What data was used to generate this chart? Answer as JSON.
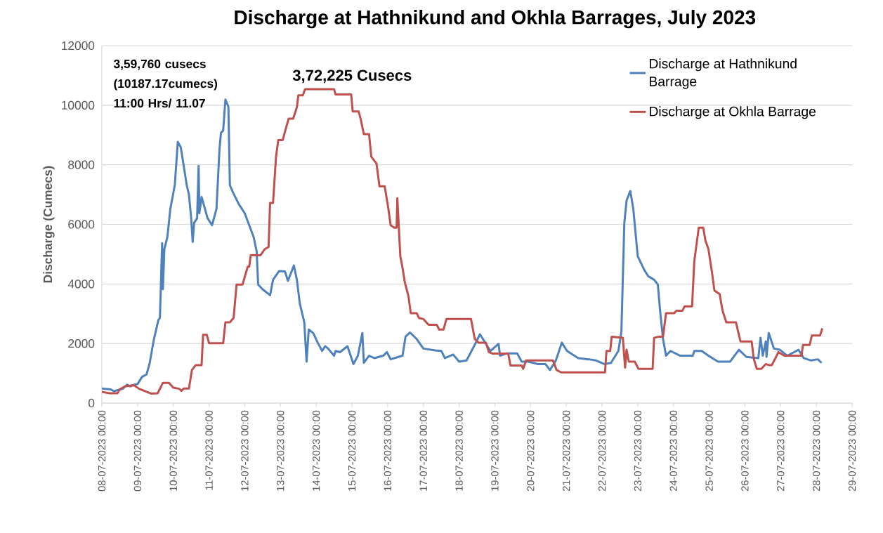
{
  "chart_data": {
    "type": "line",
    "title": "Discharge at Hathnikund and Okhla Barrages, July 2023",
    "ylabel": "Discharge (Cumecs)",
    "xlim": [
      "2023-07-08T00:00",
      "2023-07-29T00:00"
    ],
    "ylim": [
      0,
      12000
    ],
    "xticks": [
      {
        "value": "2023-07-08T00:00",
        "label": "08-07-2023 00:00"
      },
      {
        "value": "2023-07-09T00:00",
        "label": "09-07-2023 00:00"
      },
      {
        "value": "2023-07-10T00:00",
        "label": "10-07-2023 00:00"
      },
      {
        "value": "2023-07-11T00:00",
        "label": "11-07-2023 00:00"
      },
      {
        "value": "2023-07-12T00:00",
        "label": "12-07-2023 00:00"
      },
      {
        "value": "2023-07-13T00:00",
        "label": "13-07-2023 00:00"
      },
      {
        "value": "2023-07-14T00:00",
        "label": "14-07-2023 00:00"
      },
      {
        "value": "2023-07-15T00:00",
        "label": "15-07-2023 00:00"
      },
      {
        "value": "2023-07-16T00:00",
        "label": "16-07-2023 00:00"
      },
      {
        "value": "2023-07-17T00:00",
        "label": "17-07-2023 00:00"
      },
      {
        "value": "2023-07-18T00:00",
        "label": "18-07-2023 00:00"
      },
      {
        "value": "2023-07-19T00:00",
        "label": "19-07-2023 00:00"
      },
      {
        "value": "2023-07-20T00:00",
        "label": "20-07-2023 00:00"
      },
      {
        "value": "2023-07-21T00:00",
        "label": "21-07-2023 00:00"
      },
      {
        "value": "2023-07-22T00:00",
        "label": "22-07-2023 00:00"
      },
      {
        "value": "2023-07-23T00:00",
        "label": "23-07-2023 00:00"
      },
      {
        "value": "2023-07-24T00:00",
        "label": "24-07-2023 00:00"
      },
      {
        "value": "2023-07-25T00:00",
        "label": "25-07-2023 00:00"
      },
      {
        "value": "2023-07-26T00:00",
        "label": "26-07-2023 00:00"
      },
      {
        "value": "2023-07-27T00:00",
        "label": "27-07-2023 00:00"
      },
      {
        "value": "2023-07-28T00:00",
        "label": "28-07-2023 00:00"
      },
      {
        "value": "2023-07-29T00:00",
        "label": "29-07-2023 00:00"
      }
    ],
    "yticks": [
      0,
      2000,
      4000,
      6000,
      8000,
      10000,
      12000
    ],
    "grid": "y",
    "legend": "top right",
    "marker": "none",
    "line_style": "solid",
    "series": [
      {
        "name": "Discharge at Hathnikund Barrage",
        "color": "#4f81bd",
        "x": [
          "2023-07-08T00:00",
          "2023-07-08T06:00",
          "2023-07-08T08:00",
          "2023-07-08T14:00",
          "2023-07-08T17:00",
          "2023-07-08T19:00",
          "2023-07-08T22:00",
          "2023-07-09T00:00",
          "2023-07-09T03:00",
          "2023-07-09T06:00",
          "2023-07-09T08:00",
          "2023-07-09T11:00",
          "2023-07-09T14:00",
          "2023-07-09T15:00",
          "2023-07-09T16:30",
          "2023-07-09T17:00",
          "2023-07-09T18:00",
          "2023-07-09T20:00",
          "2023-07-09T22:00",
          "2023-07-10T01:00",
          "2023-07-10T03:00",
          "2023-07-10T05:00",
          "2023-07-10T06:30",
          "2023-07-10T09:00",
          "2023-07-10T10:30",
          "2023-07-10T12:00",
          "2023-07-10T13:00",
          "2023-07-10T14:00",
          "2023-07-10T16:00",
          "2023-07-10T17:00",
          "2023-07-10T17:30",
          "2023-07-10T19:00",
          "2023-07-10T23:00",
          "2023-07-11T02:00",
          "2023-07-11T05:00",
          "2023-07-11T07:00",
          "2023-07-11T08:00",
          "2023-07-11T09:30",
          "2023-07-11T11:00",
          "2023-07-11T13:00",
          "2023-07-11T14:00",
          "2023-07-11T16:00",
          "2023-07-11T20:00",
          "2023-07-12T00:00",
          "2023-07-12T03:00",
          "2023-07-12T06:00",
          "2023-07-12T08:00",
          "2023-07-12T09:00",
          "2023-07-12T12:00",
          "2023-07-12T17:00",
          "2023-07-12T19:00",
          "2023-07-12T23:00",
          "2023-07-13T03:00",
          "2023-07-13T05:00",
          "2023-07-13T09:00",
          "2023-07-13T11:00",
          "2023-07-13T13:00",
          "2023-07-13T16:00",
          "2023-07-13T17:30",
          "2023-07-13T19:00",
          "2023-07-13T22:00",
          "2023-07-14T01:00",
          "2023-07-14T04:00",
          "2023-07-14T06:00",
          "2023-07-14T08:00",
          "2023-07-14T12:00",
          "2023-07-14T13:00",
          "2023-07-14T16:00",
          "2023-07-14T21:00",
          "2023-07-15T01:00",
          "2023-07-15T04:00",
          "2023-07-15T07:00",
          "2023-07-15T08:00",
          "2023-07-15T11:30",
          "2023-07-15T15:00",
          "2023-07-15T21:00",
          "2023-07-15T23:30",
          "2023-07-16T02:00",
          "2023-07-16T10:00",
          "2023-07-16T12:00",
          "2023-07-16T15:00",
          "2023-07-16T19:30",
          "2023-07-17T00:00",
          "2023-07-17T08:00",
          "2023-07-17T12:00",
          "2023-07-17T14:30",
          "2023-07-17T20:00",
          "2023-07-18T00:00",
          "2023-07-18T05:00",
          "2023-07-18T10:00",
          "2023-07-18T14:00",
          "2023-07-18T18:00",
          "2023-07-18T21:00",
          "2023-07-19T02:30",
          "2023-07-19T03:30",
          "2023-07-19T08:00",
          "2023-07-19T15:00",
          "2023-07-19T18:00",
          "2023-07-19T22:30",
          "2023-07-20T05:00",
          "2023-07-20T10:00",
          "2023-07-20T13:00",
          "2023-07-20T17:00",
          "2023-07-20T21:00",
          "2023-07-21T00:30",
          "2023-07-21T08:00",
          "2023-07-21T15:00",
          "2023-07-21T20:00",
          "2023-07-22T01:30",
          "2023-07-22T06:00",
          "2023-07-22T11:00",
          "2023-07-22T13:00",
          "2023-07-22T15:00",
          "2023-07-22T16:30",
          "2023-07-22T19:00",
          "2023-07-22T21:00",
          "2023-07-23T00:00",
          "2023-07-23T04:30",
          "2023-07-23T07:00",
          "2023-07-23T11:00",
          "2023-07-23T13:30",
          "2023-07-23T15:00",
          "2023-07-23T17:00",
          "2023-07-23T19:00",
          "2023-07-23T22:00",
          "2023-07-24T04:30",
          "2023-07-24T13:00",
          "2023-07-24T14:00",
          "2023-07-24T19:00",
          "2023-07-24T23:30",
          "2023-07-25T06:00",
          "2023-07-25T14:00",
          "2023-07-25T20:00",
          "2023-07-26T01:00",
          "2023-07-26T09:00",
          "2023-07-26T10:30",
          "2023-07-26T12:00",
          "2023-07-26T14:00",
          "2023-07-26T14:30",
          "2023-07-26T16:00",
          "2023-07-26T19:30",
          "2023-07-26T23:30",
          "2023-07-27T04:30",
          "2023-07-27T09:00",
          "2023-07-27T12:00",
          "2023-07-27T15:30",
          "2023-07-27T20:30",
          "2023-07-28T01:00",
          "2023-07-28T03:30"
        ],
        "values": [
          490,
          460,
          400,
          480,
          620,
          560,
          620,
          640,
          880,
          960,
          1310,
          2150,
          2790,
          2860,
          5370,
          3820,
          5170,
          5570,
          6520,
          7320,
          8770,
          8590,
          8120,
          7320,
          7000,
          6210,
          5410,
          6050,
          6210,
          7960,
          6370,
          6920,
          6210,
          5970,
          6520,
          8510,
          9070,
          9150,
          10190,
          9950,
          7320,
          7080,
          6680,
          6370,
          5970,
          5570,
          5090,
          3980,
          3820,
          3620,
          4140,
          4430,
          4420,
          4100,
          4620,
          4140,
          3340,
          2710,
          1390,
          2470,
          2350,
          2030,
          1750,
          1910,
          1830,
          1590,
          1750,
          1710,
          1910,
          1310,
          1590,
          2350,
          1350,
          1590,
          1510,
          1590,
          1710,
          1470,
          1590,
          2230,
          2370,
          2150,
          1830,
          1770,
          1750,
          1510,
          1630,
          1390,
          1430,
          1910,
          2310,
          1990,
          1750,
          1990,
          1590,
          1670,
          1670,
          1390,
          1390,
          1310,
          1310,
          1110,
          1430,
          2030,
          1750,
          1510,
          1470,
          1430,
          1310,
          1350,
          1750,
          2390,
          6050,
          6800,
          7120,
          6520,
          4930,
          4460,
          4260,
          4140,
          3980,
          3100,
          2150,
          1590,
          1750,
          1590,
          1590,
          1750,
          1750,
          1590,
          1390,
          1390,
          1790,
          1550,
          1510,
          2190,
          1590,
          2070,
          1550,
          2350,
          1830,
          1790,
          1590,
          1710,
          1790,
          1510,
          1430,
          1470,
          1350
        ]
      },
      {
        "name": "Discharge at Okhla Barrage",
        "color": "#c0504d",
        "x": [
          "2023-07-08T00:00",
          "2023-07-08T05:00",
          "2023-07-08T10:30",
          "2023-07-08T12:00",
          "2023-07-08T15:30",
          "2023-07-08T21:30",
          "2023-07-09T01:00",
          "2023-07-09T05:00",
          "2023-07-09T09:00",
          "2023-07-09T13:30",
          "2023-07-09T17:00",
          "2023-07-09T21:00",
          "2023-07-10T00:00",
          "2023-07-10T04:00",
          "2023-07-10T05:30",
          "2023-07-10T07:00",
          "2023-07-10T10:30",
          "2023-07-10T12:30",
          "2023-07-10T15:00",
          "2023-07-10T19:00",
          "2023-07-10T20:00",
          "2023-07-10T22:30",
          "2023-07-11T00:00",
          "2023-07-11T09:30",
          "2023-07-11T11:00",
          "2023-07-11T14:00",
          "2023-07-11T16:30",
          "2023-07-11T18:30",
          "2023-07-11T22:30",
          "2023-07-12T02:00",
          "2023-07-12T03:00",
          "2023-07-12T04:00",
          "2023-07-12T10:30",
          "2023-07-12T13:30",
          "2023-07-12T16:00",
          "2023-07-12T17:00",
          "2023-07-12T19:00",
          "2023-07-12T21:00",
          "2023-07-12T22:30",
          "2023-07-13T01:30",
          "2023-07-13T03:00",
          "2023-07-13T05:30",
          "2023-07-13T08:30",
          "2023-07-13T11:00",
          "2023-07-13T12:00",
          "2023-07-13T15:00",
          "2023-07-13T16:30",
          "2023-07-14T12:00",
          "2023-07-14T13:00",
          "2023-07-14T23:30",
          "2023-07-15T00:30",
          "2023-07-15T04:30",
          "2023-07-15T06:00",
          "2023-07-15T08:00",
          "2023-07-15T11:30",
          "2023-07-15T13:00",
          "2023-07-15T16:30",
          "2023-07-15T18:30",
          "2023-07-15T22:00",
          "2023-07-16T00:30",
          "2023-07-16T02:00",
          "2023-07-16T04:30",
          "2023-07-16T06:00",
          "2023-07-16T06:30",
          "2023-07-16T07:30",
          "2023-07-16T08:30",
          "2023-07-16T10:00",
          "2023-07-16T11:30",
          "2023-07-16T14:00",
          "2023-07-16T15:30",
          "2023-07-16T19:30",
          "2023-07-16T21:00",
          "2023-07-17T00:00",
          "2023-07-17T03:30",
          "2023-07-17T09:00",
          "2023-07-17T10:30",
          "2023-07-17T13:30",
          "2023-07-17T15:30",
          "2023-07-18T08:00",
          "2023-07-18T10:30",
          "2023-07-18T13:00",
          "2023-07-18T18:00",
          "2023-07-18T20:00",
          "2023-07-18T22:30",
          "2023-07-19T09:00",
          "2023-07-19T10:30",
          "2023-07-19T18:00",
          "2023-07-19T19:00",
          "2023-07-19T21:00",
          "2023-07-20T15:00",
          "2023-07-20T17:30",
          "2023-07-20T20:30",
          "2023-07-22T02:00",
          "2023-07-22T03:00",
          "2023-07-22T05:30",
          "2023-07-22T06:30",
          "2023-07-22T14:00",
          "2023-07-22T15:30",
          "2023-07-22T16:30",
          "2023-07-22T18:00",
          "2023-07-22T22:00",
          "2023-07-23T00:30",
          "2023-07-23T10:00",
          "2023-07-23T11:00",
          "2023-07-23T14:00",
          "2023-07-23T17:00",
          "2023-07-23T19:00",
          "2023-07-24T00:30",
          "2023-07-24T02:00",
          "2023-07-24T06:00",
          "2023-07-24T07:30",
          "2023-07-24T12:30",
          "2023-07-24T14:00",
          "2023-07-24T17:00",
          "2023-07-24T20:00",
          "2023-07-24T21:30",
          "2023-07-24T23:30",
          "2023-07-25T02:00",
          "2023-07-25T03:30",
          "2023-07-25T07:00",
          "2023-07-25T09:00",
          "2023-07-25T11:30",
          "2023-07-25T18:00",
          "2023-07-25T21:00",
          "2023-07-26T04:30",
          "2023-07-26T06:00",
          "2023-07-26T08:00",
          "2023-07-26T11:00",
          "2023-07-26T14:00",
          "2023-07-26T16:30",
          "2023-07-26T18:00",
          "2023-07-26T20:30",
          "2023-07-26T22:30",
          "2023-07-27T02:30",
          "2023-07-27T14:00",
          "2023-07-27T15:00",
          "2023-07-27T19:30",
          "2023-07-27T21:00",
          "2023-07-28T02:30",
          "2023-07-28T04:00"
        ],
        "values": [
          380,
          330,
          330,
          460,
          560,
          600,
          480,
          400,
          320,
          330,
          680,
          680,
          520,
          480,
          410,
          490,
          490,
          1110,
          1270,
          1270,
          2290,
          2290,
          2010,
          2010,
          2710,
          2710,
          2860,
          3980,
          3980,
          4580,
          4580,
          4960,
          4960,
          5170,
          5240,
          6720,
          6720,
          8270,
          8830,
          8830,
          9110,
          9550,
          9550,
          9930,
          10330,
          10330,
          10540,
          10540,
          10360,
          10360,
          9790,
          9790,
          9510,
          9030,
          9030,
          8270,
          8040,
          7280,
          7280,
          6520,
          5970,
          5890,
          5890,
          6880,
          5890,
          4930,
          4540,
          4060,
          3580,
          3020,
          3020,
          2860,
          2820,
          2630,
          2630,
          2470,
          2470,
          2820,
          2820,
          2150,
          2030,
          2030,
          1710,
          1660,
          1660,
          1260,
          1260,
          1150,
          1430,
          1430,
          1110,
          1030,
          1030,
          1750,
          1750,
          2230,
          2190,
          1190,
          1790,
          1390,
          1390,
          1150,
          1150,
          2190,
          2230,
          2230,
          3020,
          3020,
          3100,
          3100,
          3250,
          3250,
          4770,
          5890,
          5890,
          5450,
          5170,
          4340,
          3780,
          3660,
          3100,
          2710,
          2710,
          2070,
          2070,
          1470,
          1150,
          1150,
          1310,
          1270,
          1270,
          1510,
          1710,
          1590,
          1590,
          1950,
          1950,
          2270,
          2270,
          2510
        ]
      }
    ],
    "annotations": [
      {
        "text": "3,59,760 cusecs (10187.17cumecs) 11:00 Hrs/ 11.07",
        "x": "2023-07-11T11:00",
        "y": 10190
      },
      {
        "text": "3,72,225 Cusecs",
        "x": "2023-07-13T16:30",
        "y": 10540
      }
    ]
  }
}
